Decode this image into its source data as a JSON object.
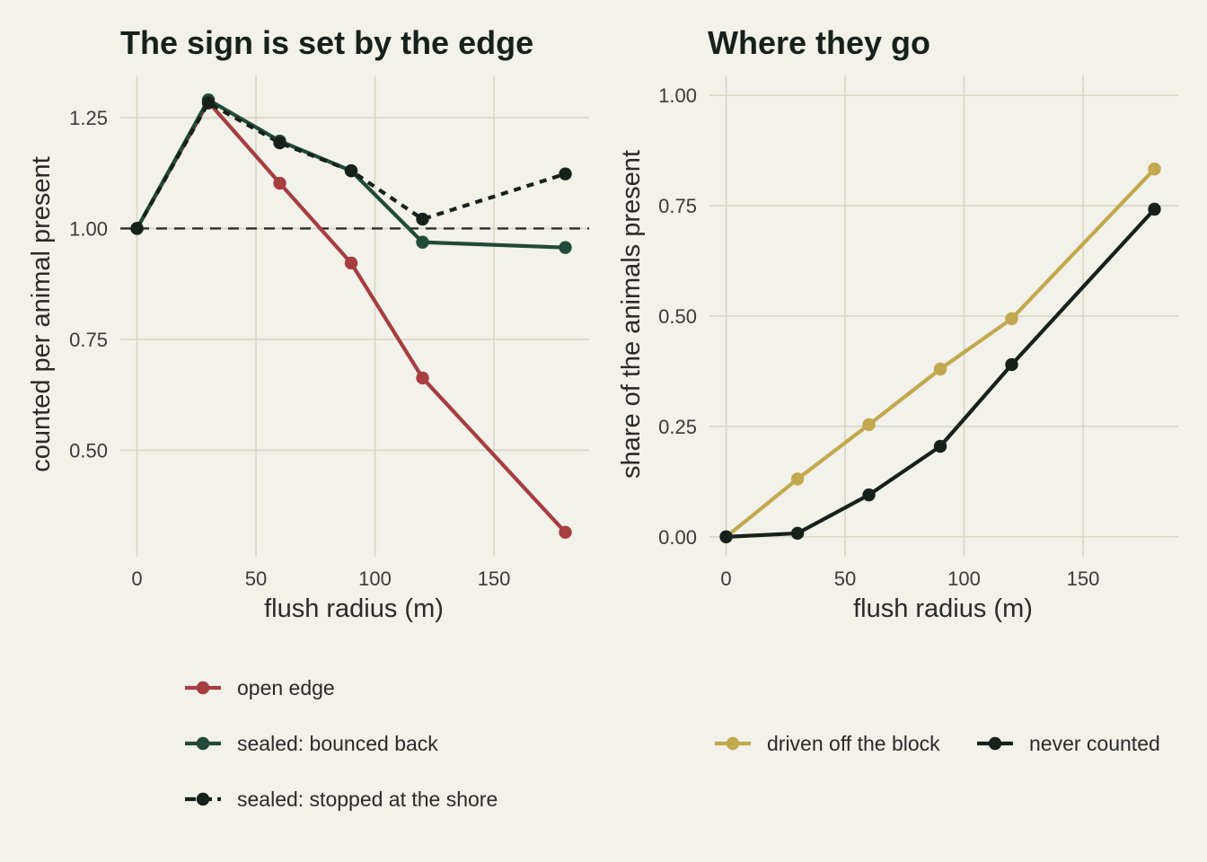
{
  "chart_data": [
    {
      "type": "line",
      "title": "The sign is set by the edge",
      "xlabel": "flush radius (m)",
      "ylabel": "counted per animal present",
      "xlim": [
        -7,
        190
      ],
      "ylim": [
        0.26,
        1.345
      ],
      "xticks": [
        0,
        50,
        100,
        150
      ],
      "yticks": [
        0.5,
        0.75,
        1.0,
        1.25
      ],
      "xtick_labels": [
        "0",
        "50",
        "100",
        "150"
      ],
      "ytick_labels": [
        "0.50",
        "0.75",
        "1.00",
        "1.25"
      ],
      "reference_line": {
        "y": 1.0,
        "style": "dashed"
      },
      "grid": true,
      "legend_position": "bottom",
      "series": [
        {
          "name": "open edge",
          "color": "#a63d40",
          "dash": "solid",
          "x": [
            0,
            30,
            60,
            90,
            120,
            180
          ],
          "y": [
            1.0,
            1.285,
            1.102,
            0.922,
            0.663,
            0.315
          ]
        },
        {
          "name": "sealed: bounced back",
          "color": "#224a38",
          "dash": "solid",
          "x": [
            0,
            30,
            60,
            90,
            120,
            180
          ],
          "y": [
            1.0,
            1.29,
            1.197,
            1.13,
            0.969,
            0.957
          ]
        },
        {
          "name": "sealed: stopped at the shore",
          "color": "#17201b",
          "dash": "dotted",
          "x": [
            0,
            30,
            60,
            90,
            120,
            180
          ],
          "y": [
            1.0,
            1.283,
            1.193,
            1.13,
            1.021,
            1.123
          ]
        }
      ]
    },
    {
      "type": "line",
      "title": "Where they go",
      "xlabel": "flush radius (m)",
      "ylabel": "share of the animals present",
      "xlim": [
        -7,
        190
      ],
      "ylim": [
        -0.045,
        1.045
      ],
      "xticks": [
        0,
        50,
        100,
        150
      ],
      "yticks": [
        0,
        0.25,
        0.5,
        0.75,
        1.0
      ],
      "xtick_labels": [
        "0",
        "50",
        "100",
        "150"
      ],
      "ytick_labels": [
        "0.00",
        "0.25",
        "0.50",
        "0.75",
        "1.00"
      ],
      "grid": true,
      "legend_position": "bottom",
      "series": [
        {
          "name": "driven off the block",
          "color": "#c2a84e",
          "dash": "solid",
          "x": [
            0,
            30,
            60,
            90,
            120,
            180
          ],
          "y": [
            0.0,
            0.131,
            0.254,
            0.38,
            0.494,
            0.833
          ]
        },
        {
          "name": "never counted",
          "color": "#17201b",
          "dash": "solid",
          "x": [
            0,
            30,
            60,
            90,
            120,
            180
          ],
          "y": [
            0.0,
            0.008,
            0.095,
            0.205,
            0.39,
            0.742
          ]
        }
      ]
    }
  ]
}
